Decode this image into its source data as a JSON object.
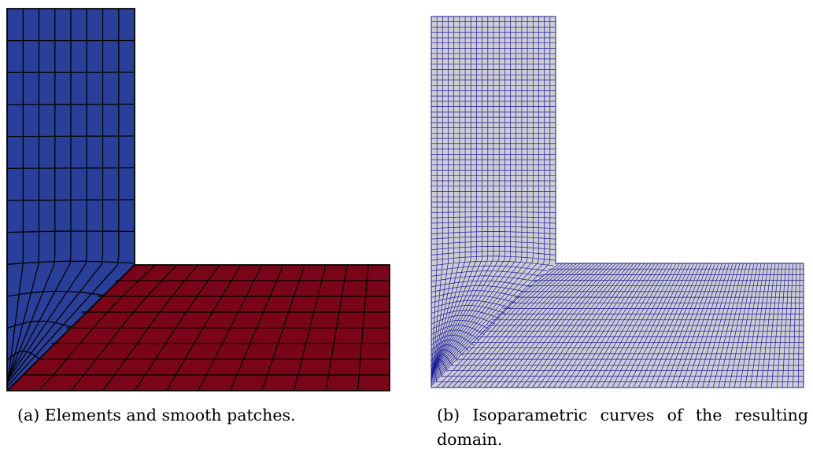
{
  "figure": {
    "panel_a": {
      "caption": "(a) Elements and smooth patches.",
      "colors": {
        "vertical_patch": "#2a3f9a",
        "horizontal_patch": "#7b0518",
        "edge": "#000000"
      }
    },
    "panel_b": {
      "caption_line1": "(b) Isoparametric curves of the resulting",
      "caption_line2": "domain.",
      "colors": {
        "fill": "#cdcdd3",
        "curves": "#1a1a9a"
      }
    }
  }
}
